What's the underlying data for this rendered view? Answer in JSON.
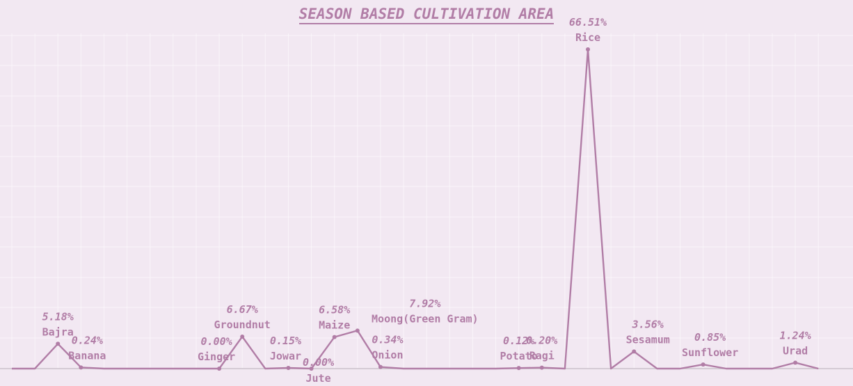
{
  "chart_data": {
    "type": "line",
    "title": "SEASON BASED CULTIVATION AREA",
    "colors": {
      "line": "#b17da6",
      "background": "#f2e8f2",
      "grid": "#ffffff",
      "baseline": "#c9c1c9"
    },
    "grid": true,
    "ylim": [
      0,
      70
    ],
    "points": [
      {
        "value": 0.0
      },
      {
        "value": 0.0
      },
      {
        "name": "Bajra",
        "value": 5.18,
        "label": "5.18%"
      },
      {
        "name": "Banana",
        "value": 0.24,
        "label": "0.24%"
      },
      {
        "value": 0.0
      },
      {
        "value": 0.0
      },
      {
        "value": 0.0
      },
      {
        "value": 0.0
      },
      {
        "value": 0.0
      },
      {
        "name": "Ginger",
        "value": 0.0,
        "label": "0.00%"
      },
      {
        "name": "Groundnut",
        "value": 6.67,
        "label": "6.67%"
      },
      {
        "value": 0.0
      },
      {
        "name": "Jowar",
        "value": 0.15,
        "label": "0.15%"
      },
      {
        "name": "Jute",
        "value": 0.0,
        "label": "0.00%"
      },
      {
        "name": "Maize",
        "value": 6.58,
        "label": "6.58%"
      },
      {
        "name": "Moong(Green Gram)",
        "value": 7.92,
        "label": "7.92%"
      },
      {
        "name": "Onion",
        "value": 0.34,
        "label": "0.34%"
      },
      {
        "value": 0.0
      },
      {
        "value": 0.0
      },
      {
        "value": 0.0
      },
      {
        "value": 0.0
      },
      {
        "value": 0.0
      },
      {
        "name": "Potato",
        "value": 0.12,
        "label": "0.12%"
      },
      {
        "name": "Ragi",
        "value": 0.2,
        "label": "0.20%"
      },
      {
        "value": 0.0
      },
      {
        "name": "Rice",
        "value": 66.51,
        "label": "66.51%"
      },
      {
        "value": 0.0
      },
      {
        "name": "Sesamum",
        "value": 3.56,
        "label": "3.56%"
      },
      {
        "value": 0.0
      },
      {
        "value": 0.0
      },
      {
        "name": "Sunflower",
        "value": 0.85,
        "label": "0.85%"
      },
      {
        "value": 0.0
      },
      {
        "value": 0.0
      },
      {
        "value": 0.0
      },
      {
        "name": "Urad",
        "value": 1.24,
        "label": "1.24%"
      },
      {
        "value": 0.0
      }
    ]
  }
}
